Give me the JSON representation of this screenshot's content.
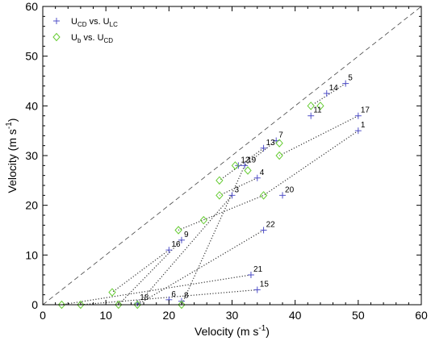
{
  "chart_data": {
    "type": "scatter",
    "xlabel_main": "Velocity (m s",
    "xlabel_sup": "-1",
    "xlabel_end": ")",
    "ylabel_main": "Velocity (m s",
    "ylabel_sup": "-1",
    "ylabel_end": ")",
    "xlim": [
      0,
      60
    ],
    "ylim": [
      0,
      60
    ],
    "xticks": [
      "0",
      "10",
      "20",
      "30",
      "40",
      "50",
      "60"
    ],
    "yticks": [
      "0",
      "10",
      "20",
      "30",
      "40",
      "50",
      "60"
    ],
    "diagonal": "1:1 dashed line",
    "legend": {
      "placement": "top-left",
      "entries": [
        {
          "marker": "plus",
          "color": "#5050c8",
          "parts": [
            "U",
            "CD",
            " vs. U",
            "LC"
          ]
        },
        {
          "marker": "diamond",
          "color": "#66cc33",
          "parts": [
            "U",
            "b",
            " vs. U",
            "CD"
          ]
        }
      ]
    },
    "series": [
      {
        "marker": "plus",
        "color": "#5050c8",
        "points": [
          {
            "id": "1",
            "x": 50,
            "y": 35
          },
          {
            "id": "3",
            "x": 30,
            "y": 22
          },
          {
            "id": "4",
            "x": 34,
            "y": 25.5
          },
          {
            "id": "5",
            "x": 48,
            "y": 44.5
          },
          {
            "id": "6",
            "x": 20,
            "y": 1
          },
          {
            "id": "7",
            "x": 37,
            "y": 33
          },
          {
            "id": "8",
            "x": 22,
            "y": 0.7
          },
          {
            "id": "9",
            "x": 22,
            "y": 13
          },
          {
            "id": "11",
            "x": 42.5,
            "y": 38
          },
          {
            "id": "12",
            "x": 31,
            "y": 28
          },
          {
            "id": "13",
            "x": 35,
            "y": 31.5
          },
          {
            "id": "14",
            "x": 45,
            "y": 42.5
          },
          {
            "id": "15",
            "x": 34,
            "y": 3
          },
          {
            "id": "16",
            "x": 20,
            "y": 11
          },
          {
            "id": "17",
            "x": 50,
            "y": 38
          },
          {
            "id": "18",
            "x": 15,
            "y": 0.3
          },
          {
            "id": "19",
            "x": 32,
            "y": 28
          },
          {
            "id": "20",
            "x": 38,
            "y": 22
          },
          {
            "id": "21",
            "x": 33,
            "y": 6
          },
          {
            "id": "22",
            "x": 35,
            "y": 15
          }
        ]
      },
      {
        "marker": "diamond",
        "color": "#66cc33",
        "points": [
          {
            "x": 3,
            "y": 0
          },
          {
            "x": 6,
            "y": 0
          },
          {
            "x": 12,
            "y": 0
          },
          {
            "x": 15,
            "y": 0
          },
          {
            "x": 22,
            "y": 0
          },
          {
            "x": 11,
            "y": 2.5
          },
          {
            "x": 21.5,
            "y": 15
          },
          {
            "x": 25.5,
            "y": 17
          },
          {
            "x": 28,
            "y": 22
          },
          {
            "x": 35,
            "y": 22
          },
          {
            "x": 28,
            "y": 25
          },
          {
            "x": 32.5,
            "y": 27
          },
          {
            "x": 30.5,
            "y": 28
          },
          {
            "x": 37.5,
            "y": 30
          },
          {
            "x": 37.5,
            "y": 32.5
          },
          {
            "x": 42.5,
            "y": 40
          },
          {
            "x": 44,
            "y": 40
          }
        ]
      }
    ],
    "connector_lines": [
      [
        [
          50,
          35
        ],
        [
          35,
          22
        ],
        [
          21.5,
          15
        ]
      ],
      [
        [
          50,
          38
        ],
        [
          37.5,
          30
        ]
      ],
      [
        [
          48,
          44.5
        ],
        [
          42.5,
          40
        ]
      ],
      [
        [
          35,
          31.5
        ],
        [
          28,
          25
        ]
      ],
      [
        [
          37,
          33
        ],
        [
          32,
          28
        ]
      ],
      [
        [
          34,
          25.5
        ],
        [
          28,
          22
        ]
      ],
      [
        [
          30,
          22
        ],
        [
          15,
          0
        ]
      ],
      [
        [
          32,
          28
        ],
        [
          22,
          0
        ]
      ],
      [
        [
          20,
          11
        ],
        [
          11,
          2.5
        ]
      ],
      [
        [
          22,
          13
        ],
        [
          12,
          0
        ]
      ],
      [
        [
          35,
          15
        ],
        [
          15,
          0
        ]
      ],
      [
        [
          33,
          6
        ],
        [
          3,
          0
        ]
      ],
      [
        [
          34,
          3
        ],
        [
          6,
          0
        ]
      ]
    ]
  }
}
